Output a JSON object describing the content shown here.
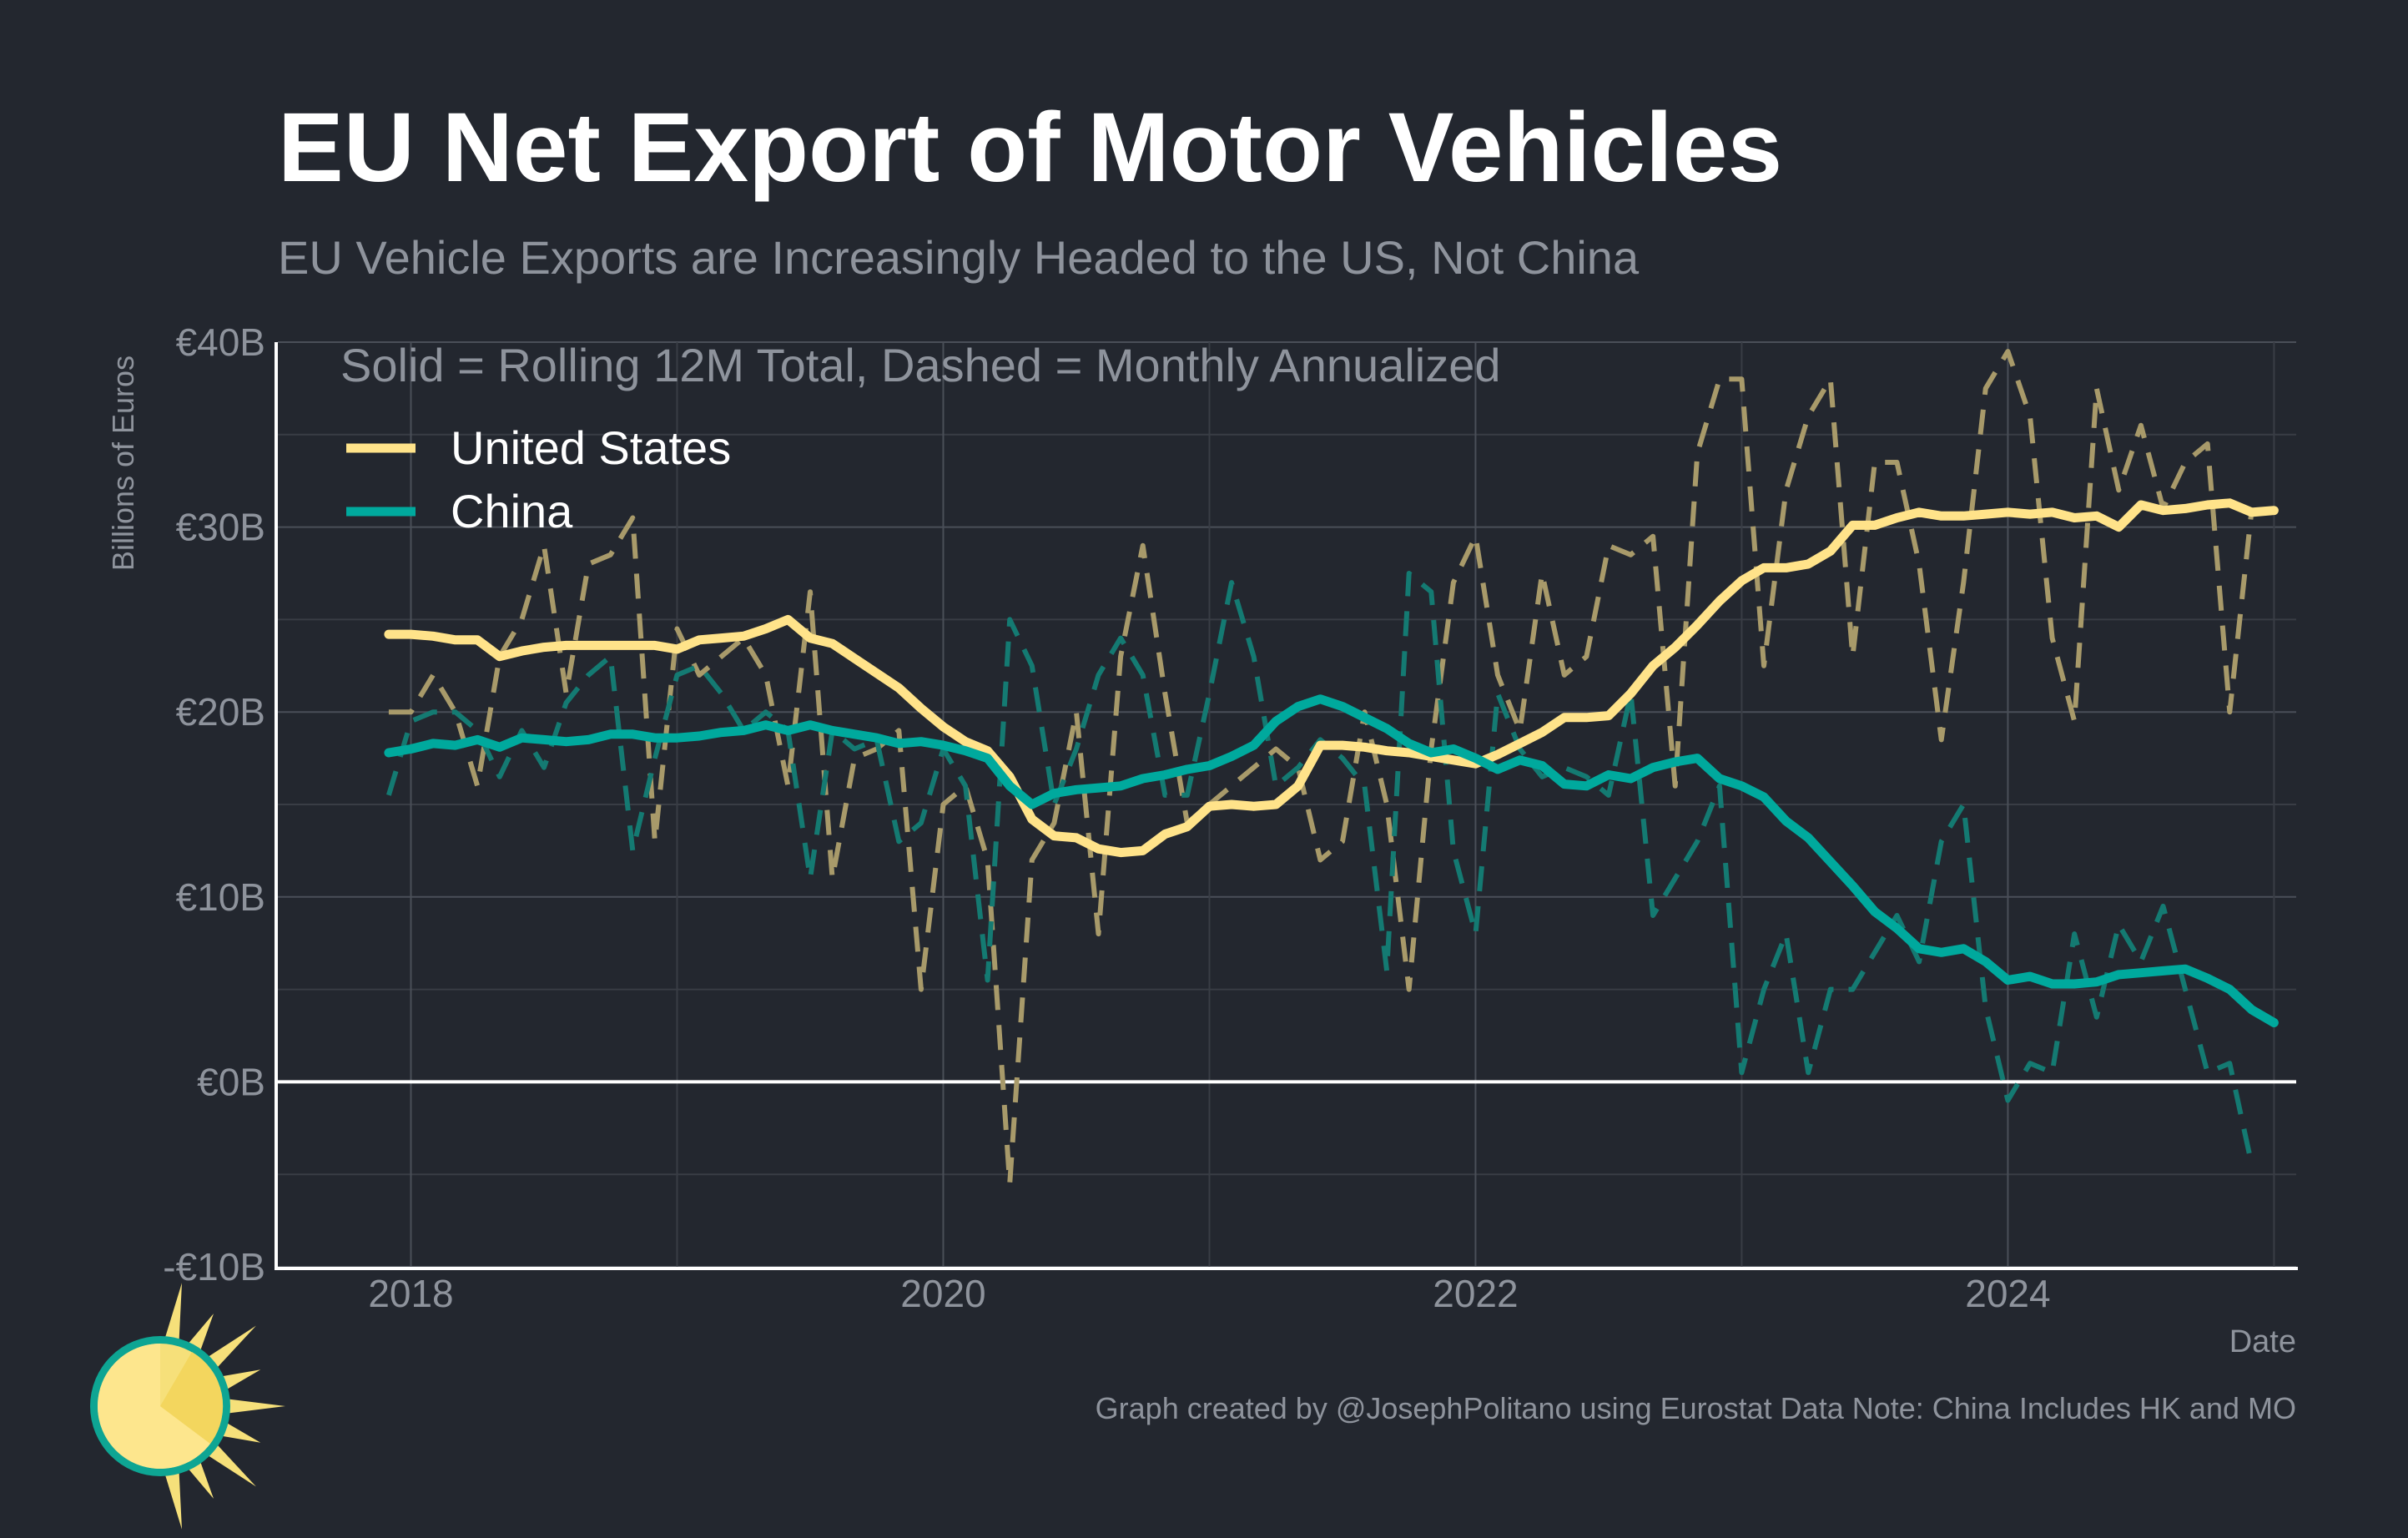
{
  "chart_data": {
    "type": "line",
    "title": "EU Net Export of Motor Vehicles",
    "subtitle": "EU Vehicle Exports are Increasingly Headed to the US, Not China",
    "annotation": "Solid = Rolling 12M Total, Dashed = Monthly Annualized",
    "xlabel": "Date",
    "ylabel": "Billions of Euros",
    "caption": "Graph created by @JosephPolitano using Eurostat Data  Note: China Includes HK and MO",
    "ylim": [
      -10,
      40
    ],
    "xlim": [
      "2017-07",
      "2025-02"
    ],
    "y_ticks": [
      -10,
      0,
      10,
      20,
      30,
      40
    ],
    "y_tick_labels": [
      "-€10B",
      "€0B",
      "€10B",
      "€20B",
      "€30B",
      "€40B"
    ],
    "x_ticks": [
      "2018-01",
      "2020-01",
      "2022-01",
      "2024-01"
    ],
    "x_tick_labels": [
      "2018",
      "2020",
      "2022",
      "2024"
    ],
    "grid": true,
    "legend_position": "top-left",
    "x_start": "2017-12",
    "x_end": "2024-10",
    "series": [
      {
        "name": "United States",
        "style": "solid",
        "color": "#ffe38a",
        "values": [
          24.2,
          24.2,
          24.1,
          23.9,
          23.9,
          23.0,
          23.3,
          23.5,
          23.6,
          23.6,
          23.6,
          23.6,
          23.6,
          23.4,
          23.9,
          24.0,
          24.1,
          24.5,
          25.0,
          24.0,
          23.7,
          22.9,
          22.1,
          21.3,
          20.2,
          19.2,
          18.4,
          17.9,
          16.5,
          14.2,
          13.3,
          13.2,
          12.6,
          12.4,
          12.5,
          13.4,
          13.8,
          14.9,
          15.0,
          14.9,
          15.0,
          16.0,
          18.2,
          18.2,
          18.1,
          17.9,
          17.8,
          17.6,
          17.4,
          17.2,
          17.7,
          18.3,
          18.9,
          19.7,
          19.7,
          19.8,
          21.0,
          22.5,
          23.5,
          24.7,
          26.0,
          27.1,
          27.8,
          27.8,
          28.0,
          28.7,
          30.1,
          30.1,
          30.5,
          30.8,
          30.6,
          30.6,
          30.7,
          30.8,
          30.7,
          30.8,
          30.5,
          30.6,
          30.0,
          31.2,
          30.9,
          31.0,
          31.2,
          31.3,
          30.8,
          30.9
        ]
      },
      {
        "name": "China",
        "style": "solid",
        "color": "#00a99d",
        "values": [
          17.8,
          18.0,
          18.3,
          18.2,
          18.5,
          18.1,
          18.6,
          18.5,
          18.4,
          18.5,
          18.8,
          18.8,
          18.6,
          18.6,
          18.7,
          18.9,
          19.0,
          19.3,
          19.0,
          19.3,
          19.0,
          18.8,
          18.6,
          18.3,
          18.4,
          18.2,
          17.9,
          17.5,
          16.0,
          15.0,
          15.6,
          15.8,
          15.9,
          16.0,
          16.4,
          16.6,
          16.9,
          17.1,
          17.6,
          18.2,
          19.5,
          20.3,
          20.7,
          20.3,
          19.7,
          19.1,
          18.3,
          17.8,
          18.0,
          17.5,
          16.9,
          17.4,
          17.1,
          16.1,
          16.0,
          16.6,
          16.4,
          17.0,
          17.3,
          17.5,
          16.4,
          16.0,
          15.4,
          14.1,
          13.2,
          11.9,
          10.6,
          9.2,
          8.3,
          7.2,
          7.0,
          7.2,
          6.5,
          5.5,
          5.7,
          5.3,
          5.3,
          5.4,
          5.8,
          5.9,
          6.0,
          6.1,
          5.6,
          5.0,
          3.9,
          3.2
        ]
      },
      {
        "name": "United States (monthly annualized)",
        "style": "dashed",
        "color": "#a89a6a",
        "values": [
          20.0,
          20.0,
          22.0,
          20.0,
          16.0,
          23.0,
          25.0,
          29.0,
          21.0,
          28.0,
          28.5,
          30.5,
          13.0,
          24.5,
          22.0,
          23.0,
          24.0,
          22.0,
          16.0,
          26.5,
          11.0,
          17.5,
          18.0,
          19.0,
          5.0,
          15.0,
          16.0,
          12.0,
          -5.5,
          12.0,
          14.0,
          20.0,
          8.0,
          23.0,
          29.0,
          21.0,
          14.0,
          15.0,
          16.0,
          17.0,
          18.0,
          17.0,
          12.0,
          13.0,
          20.0,
          15.0,
          5.0,
          18.0,
          27.0,
          29.5,
          22.0,
          19.0,
          27.5,
          22.0,
          23.0,
          29.0,
          28.5,
          29.5,
          16.0,
          34.0,
          38.0,
          38.0,
          22.5,
          32.0,
          36.0,
          38.0,
          23.0,
          33.5,
          33.5,
          28.0,
          18.5,
          27.0,
          37.5,
          39.5,
          36.0,
          24.0,
          19.5,
          37.5,
          32.0,
          35.5,
          31.0,
          33.5,
          34.5,
          20.0,
          31.0,
          null
        ]
      },
      {
        "name": "China (monthly annualized)",
        "style": "dashed",
        "color": "#147a72",
        "values": [
          15.5,
          19.5,
          20.0,
          20.0,
          19.0,
          16.5,
          19.0,
          17.0,
          20.5,
          22.0,
          23.0,
          12.5,
          17.5,
          22.0,
          22.5,
          21.0,
          19.0,
          20.0,
          19.0,
          11.0,
          19.0,
          18.0,
          18.5,
          13.0,
          14.0,
          18.0,
          16.0,
          5.5,
          25.0,
          22.5,
          15.0,
          18.0,
          22.0,
          24.0,
          22.0,
          15.5,
          15.5,
          21.0,
          27.0,
          23.0,
          16.0,
          17.0,
          18.5,
          17.5,
          16.0,
          6.0,
          27.5,
          26.5,
          12.5,
          8.0,
          21.0,
          18.0,
          16.5,
          17.0,
          16.5,
          15.5,
          21.0,
          9.0,
          11.0,
          13.0,
          16.0,
          0.5,
          5.0,
          8.0,
          0.5,
          5.0,
          5.0,
          7.0,
          9.0,
          6.5,
          13.0,
          15.0,
          4.0,
          -1.0,
          1.0,
          0.5,
          8.0,
          3.5,
          8.5,
          6.5,
          9.5,
          5.0,
          0.5,
          1.0,
          -4.5,
          null
        ]
      }
    ]
  }
}
